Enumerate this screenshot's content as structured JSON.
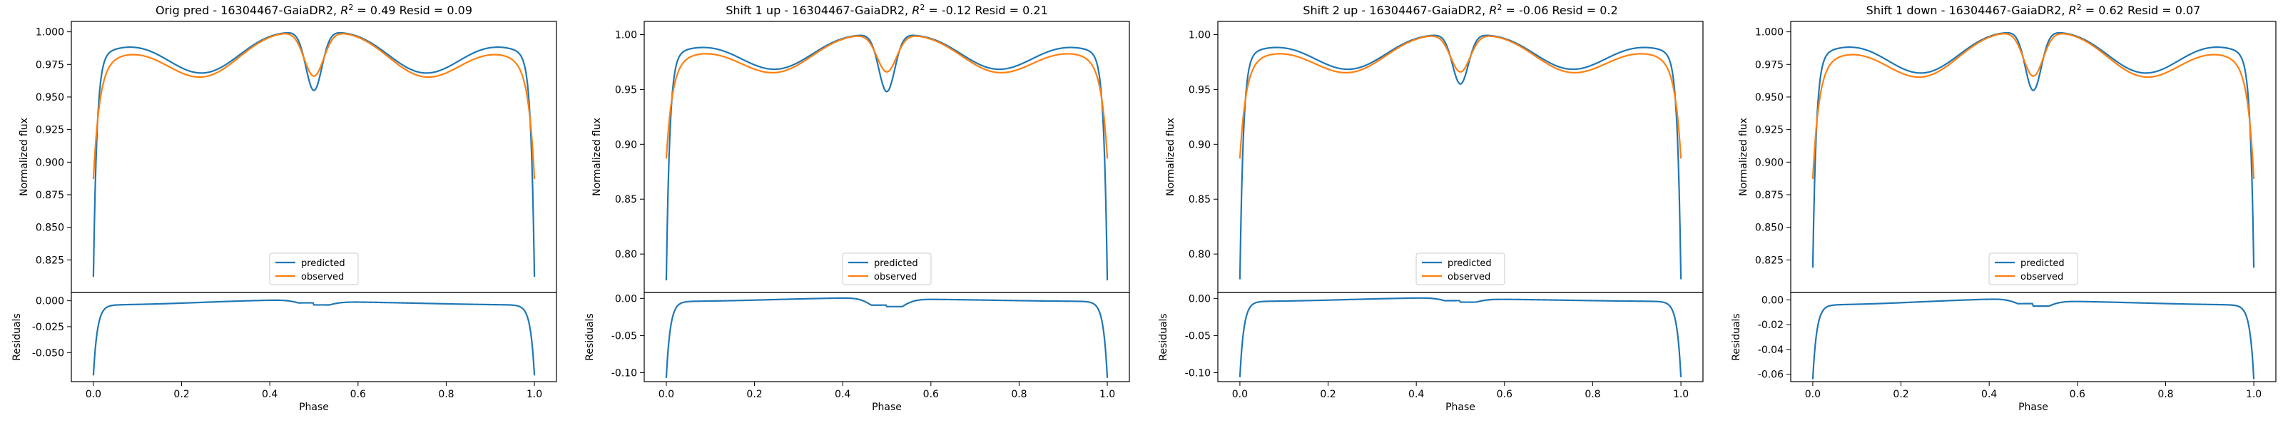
{
  "chart_data": [
    {
      "type": "line",
      "title": "Orig pred - 16304467-GaiaDR2, R² = 0.49 Resid = 0.09",
      "title_prefix": "Orig pred - 16304467-GaiaDR2, ",
      "r2_label": "R",
      "r2_value": " = 0.49",
      "resid_text": " Resid = 0.09",
      "ylabel_top": "Normalized flux",
      "ylabel_bottom": "Residuals",
      "xlabel": "Phase",
      "xlim": [
        -0.05,
        1.05
      ],
      "xticks": [
        "0.0",
        "0.2",
        "0.4",
        "0.6",
        "0.8",
        "1.0"
      ],
      "top": {
        "ylim": [
          0.8,
          1.008
        ],
        "yticks": [
          "0.825",
          "0.850",
          "0.875",
          "0.900",
          "0.925",
          "0.950",
          "0.975",
          "1.000"
        ],
        "pred_edge": 0.812,
        "pred_dip": 0.955,
        "obs_edge": 0.883,
        "obs_dip": 0.96
      },
      "bottom": {
        "ylim": [
          -0.078,
          0.008
        ],
        "yticks": [
          "0.000",
          "-0.025",
          "-0.050"
        ],
        "edge": -0.071,
        "dip": -0.005
      },
      "legend": [
        "predicted",
        "observed"
      ],
      "legend_position": "lower center"
    },
    {
      "type": "line",
      "title": "Shift 1 up - 16304467-GaiaDR2, R² = -0.12 Resid = 0.21",
      "title_prefix": "Shift 1 up - 16304467-GaiaDR2, ",
      "r2_label": "R",
      "r2_value": " = -0.12",
      "resid_text": " Resid = 0.21",
      "ylabel_top": "Normalized flux",
      "ylabel_bottom": "Residuals",
      "xlabel": "Phase",
      "xlim": [
        -0.05,
        1.05
      ],
      "xticks": [
        "0.0",
        "0.2",
        "0.4",
        "0.6",
        "0.8",
        "1.0"
      ],
      "top": {
        "ylim": [
          0.765,
          1.012
        ],
        "yticks": [
          "0.80",
          "0.85",
          "0.90",
          "0.95",
          "1.00"
        ],
        "pred_edge": 0.776,
        "pred_dip": 0.948,
        "obs_edge": 0.883,
        "obs_dip": 0.96
      },
      "bottom": {
        "ylim": [
          -0.112,
          0.008
        ],
        "yticks": [
          "0.00",
          "-0.05",
          "-0.10"
        ],
        "edge": -0.106,
        "dip": -0.012
      },
      "legend": [
        "predicted",
        "observed"
      ],
      "legend_position": "lower center"
    },
    {
      "type": "line",
      "title": "Shift 2 up - 16304467-GaiaDR2, R² = -0.06 Resid = 0.2",
      "title_prefix": "Shift 2 up - 16304467-GaiaDR2, ",
      "r2_label": "R",
      "r2_value": " = -0.06",
      "resid_text": " Resid = 0.2",
      "ylabel_top": "Normalized flux",
      "ylabel_bottom": "Residuals",
      "xlabel": "Phase",
      "xlim": [
        -0.05,
        1.05
      ],
      "xticks": [
        "0.0",
        "0.2",
        "0.4",
        "0.6",
        "0.8",
        "1.0"
      ],
      "top": {
        "ylim": [
          0.765,
          1.012
        ],
        "yticks": [
          "0.80",
          "0.85",
          "0.90",
          "0.95",
          "1.00"
        ],
        "pred_edge": 0.777,
        "pred_dip": 0.955,
        "obs_edge": 0.883,
        "obs_dip": 0.96
      },
      "bottom": {
        "ylim": [
          -0.112,
          0.008
        ],
        "yticks": [
          "0.00",
          "-0.05",
          "-0.10"
        ],
        "edge": -0.105,
        "dip": -0.006
      },
      "legend": [
        "predicted",
        "observed"
      ],
      "legend_position": "lower center"
    },
    {
      "type": "line",
      "title": "Shift 1 down - 16304467-GaiaDR2, R² = 0.62 Resid = 0.07",
      "title_prefix": "Shift 1 down - 16304467-GaiaDR2, ",
      "r2_label": "R",
      "r2_value": " = 0.62",
      "resid_text": " Resid = 0.07",
      "ylabel_top": "Normalized flux",
      "ylabel_bottom": "Residuals",
      "xlabel": "Phase",
      "xlim": [
        -0.05,
        1.05
      ],
      "xticks": [
        "0.0",
        "0.2",
        "0.4",
        "0.6",
        "0.8",
        "1.0"
      ],
      "top": {
        "ylim": [
          0.8,
          1.008
        ],
        "yticks": [
          "0.825",
          "0.850",
          "0.875",
          "0.900",
          "0.925",
          "0.950",
          "0.975",
          "1.000"
        ],
        "pred_edge": 0.819,
        "pred_dip": 0.955,
        "obs_edge": 0.883,
        "obs_dip": 0.96
      },
      "bottom": {
        "ylim": [
          -0.066,
          0.006
        ],
        "yticks": [
          "0.00",
          "-0.02",
          "-0.04",
          "-0.06"
        ],
        "edge": -0.063,
        "dip": -0.006
      },
      "legend": [
        "predicted",
        "observed"
      ],
      "legend_position": "lower center"
    }
  ],
  "colors": {
    "predicted": "#1f77b4",
    "observed": "#ff7f0e"
  }
}
